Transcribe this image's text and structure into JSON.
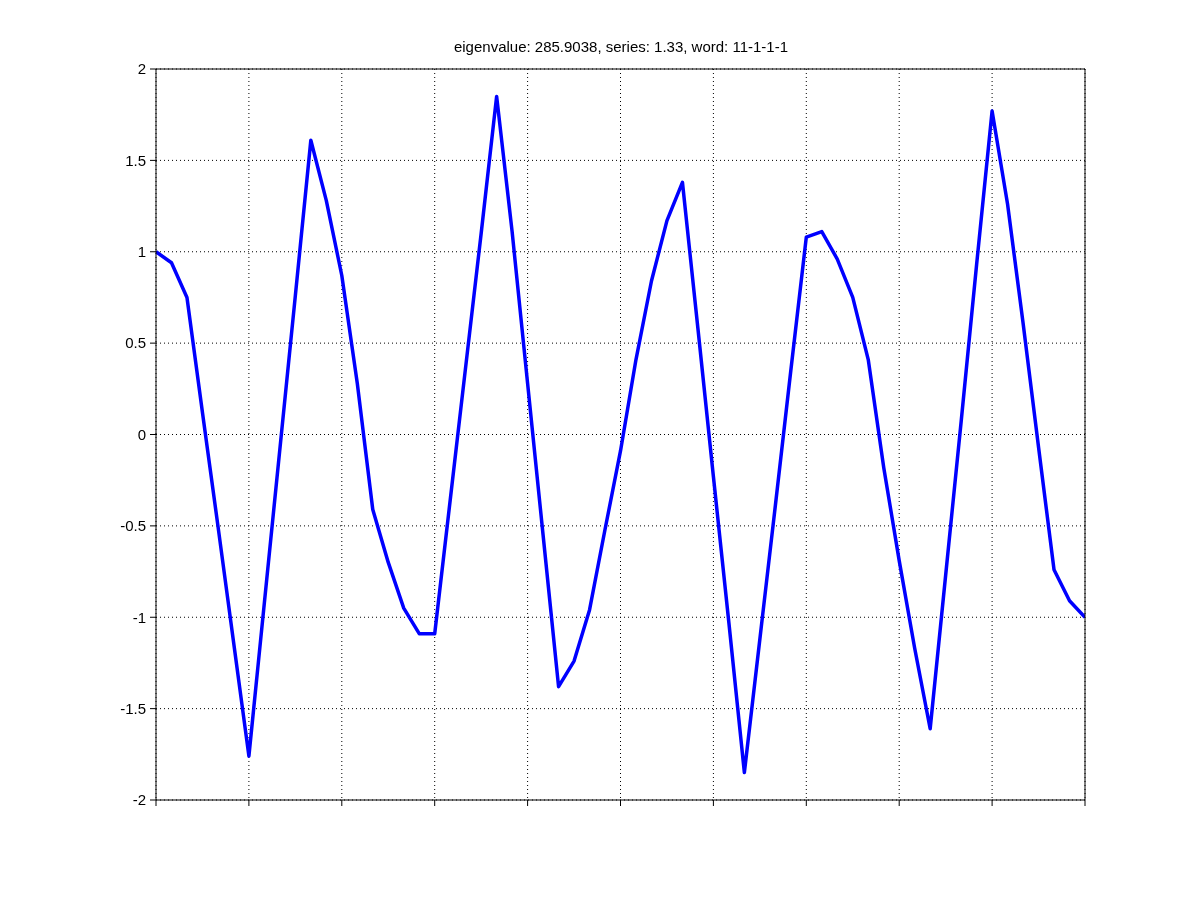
{
  "chart_data": {
    "type": "line",
    "title": "eigenvalue: 285.9038, series: 1.33, word: 11-1-1-1",
    "categories": [
      null,
      null,
      null,
      null,
      null,
      null,
      null,
      null,
      null,
      null,
      null,
      null,
      null,
      null,
      null,
      null,
      null,
      null,
      null,
      null,
      null,
      null,
      null,
      null,
      null,
      null,
      null,
      null,
      null,
      null,
      null,
      null,
      null,
      null,
      null,
      null,
      null,
      null,
      null,
      null,
      null,
      null,
      null,
      null,
      null,
      null,
      null,
      null,
      null,
      null,
      null,
      null,
      null,
      null,
      null,
      null,
      null,
      null,
      null,
      null,
      null
    ],
    "values": [
      1.0,
      0.94,
      0.75,
      0.12,
      -0.5,
      -1.13,
      -1.76,
      -0.92,
      -0.08,
      0.76,
      1.61,
      1.28,
      0.87,
      0.28,
      -0.41,
      -0.7,
      -0.95,
      -1.09,
      -1.09,
      -0.36,
      0.37,
      1.1,
      1.85,
      1.11,
      0.28,
      -0.55,
      -1.38,
      -1.24,
      -0.96,
      -0.52,
      -0.09,
      0.41,
      0.84,
      1.17,
      1.38,
      0.58,
      -0.23,
      -1.03,
      -1.85,
      -1.12,
      -0.39,
      0.35,
      1.08,
      1.11,
      0.96,
      0.75,
      0.41,
      -0.18,
      -0.69,
      -1.17,
      -1.61,
      -0.77,
      0.07,
      0.93,
      1.77,
      1.26,
      0.61,
      -0.07,
      -0.74,
      -0.91,
      -1.0
    ],
    "color": "#0000ff",
    "ylim": [
      -2,
      2
    ],
    "yticks": [
      -2,
      -1.5,
      -1,
      -0.5,
      0,
      0.5,
      1,
      1.5,
      2
    ],
    "grid": true,
    "tick_labels": "y",
    "line_style": "solid"
  }
}
